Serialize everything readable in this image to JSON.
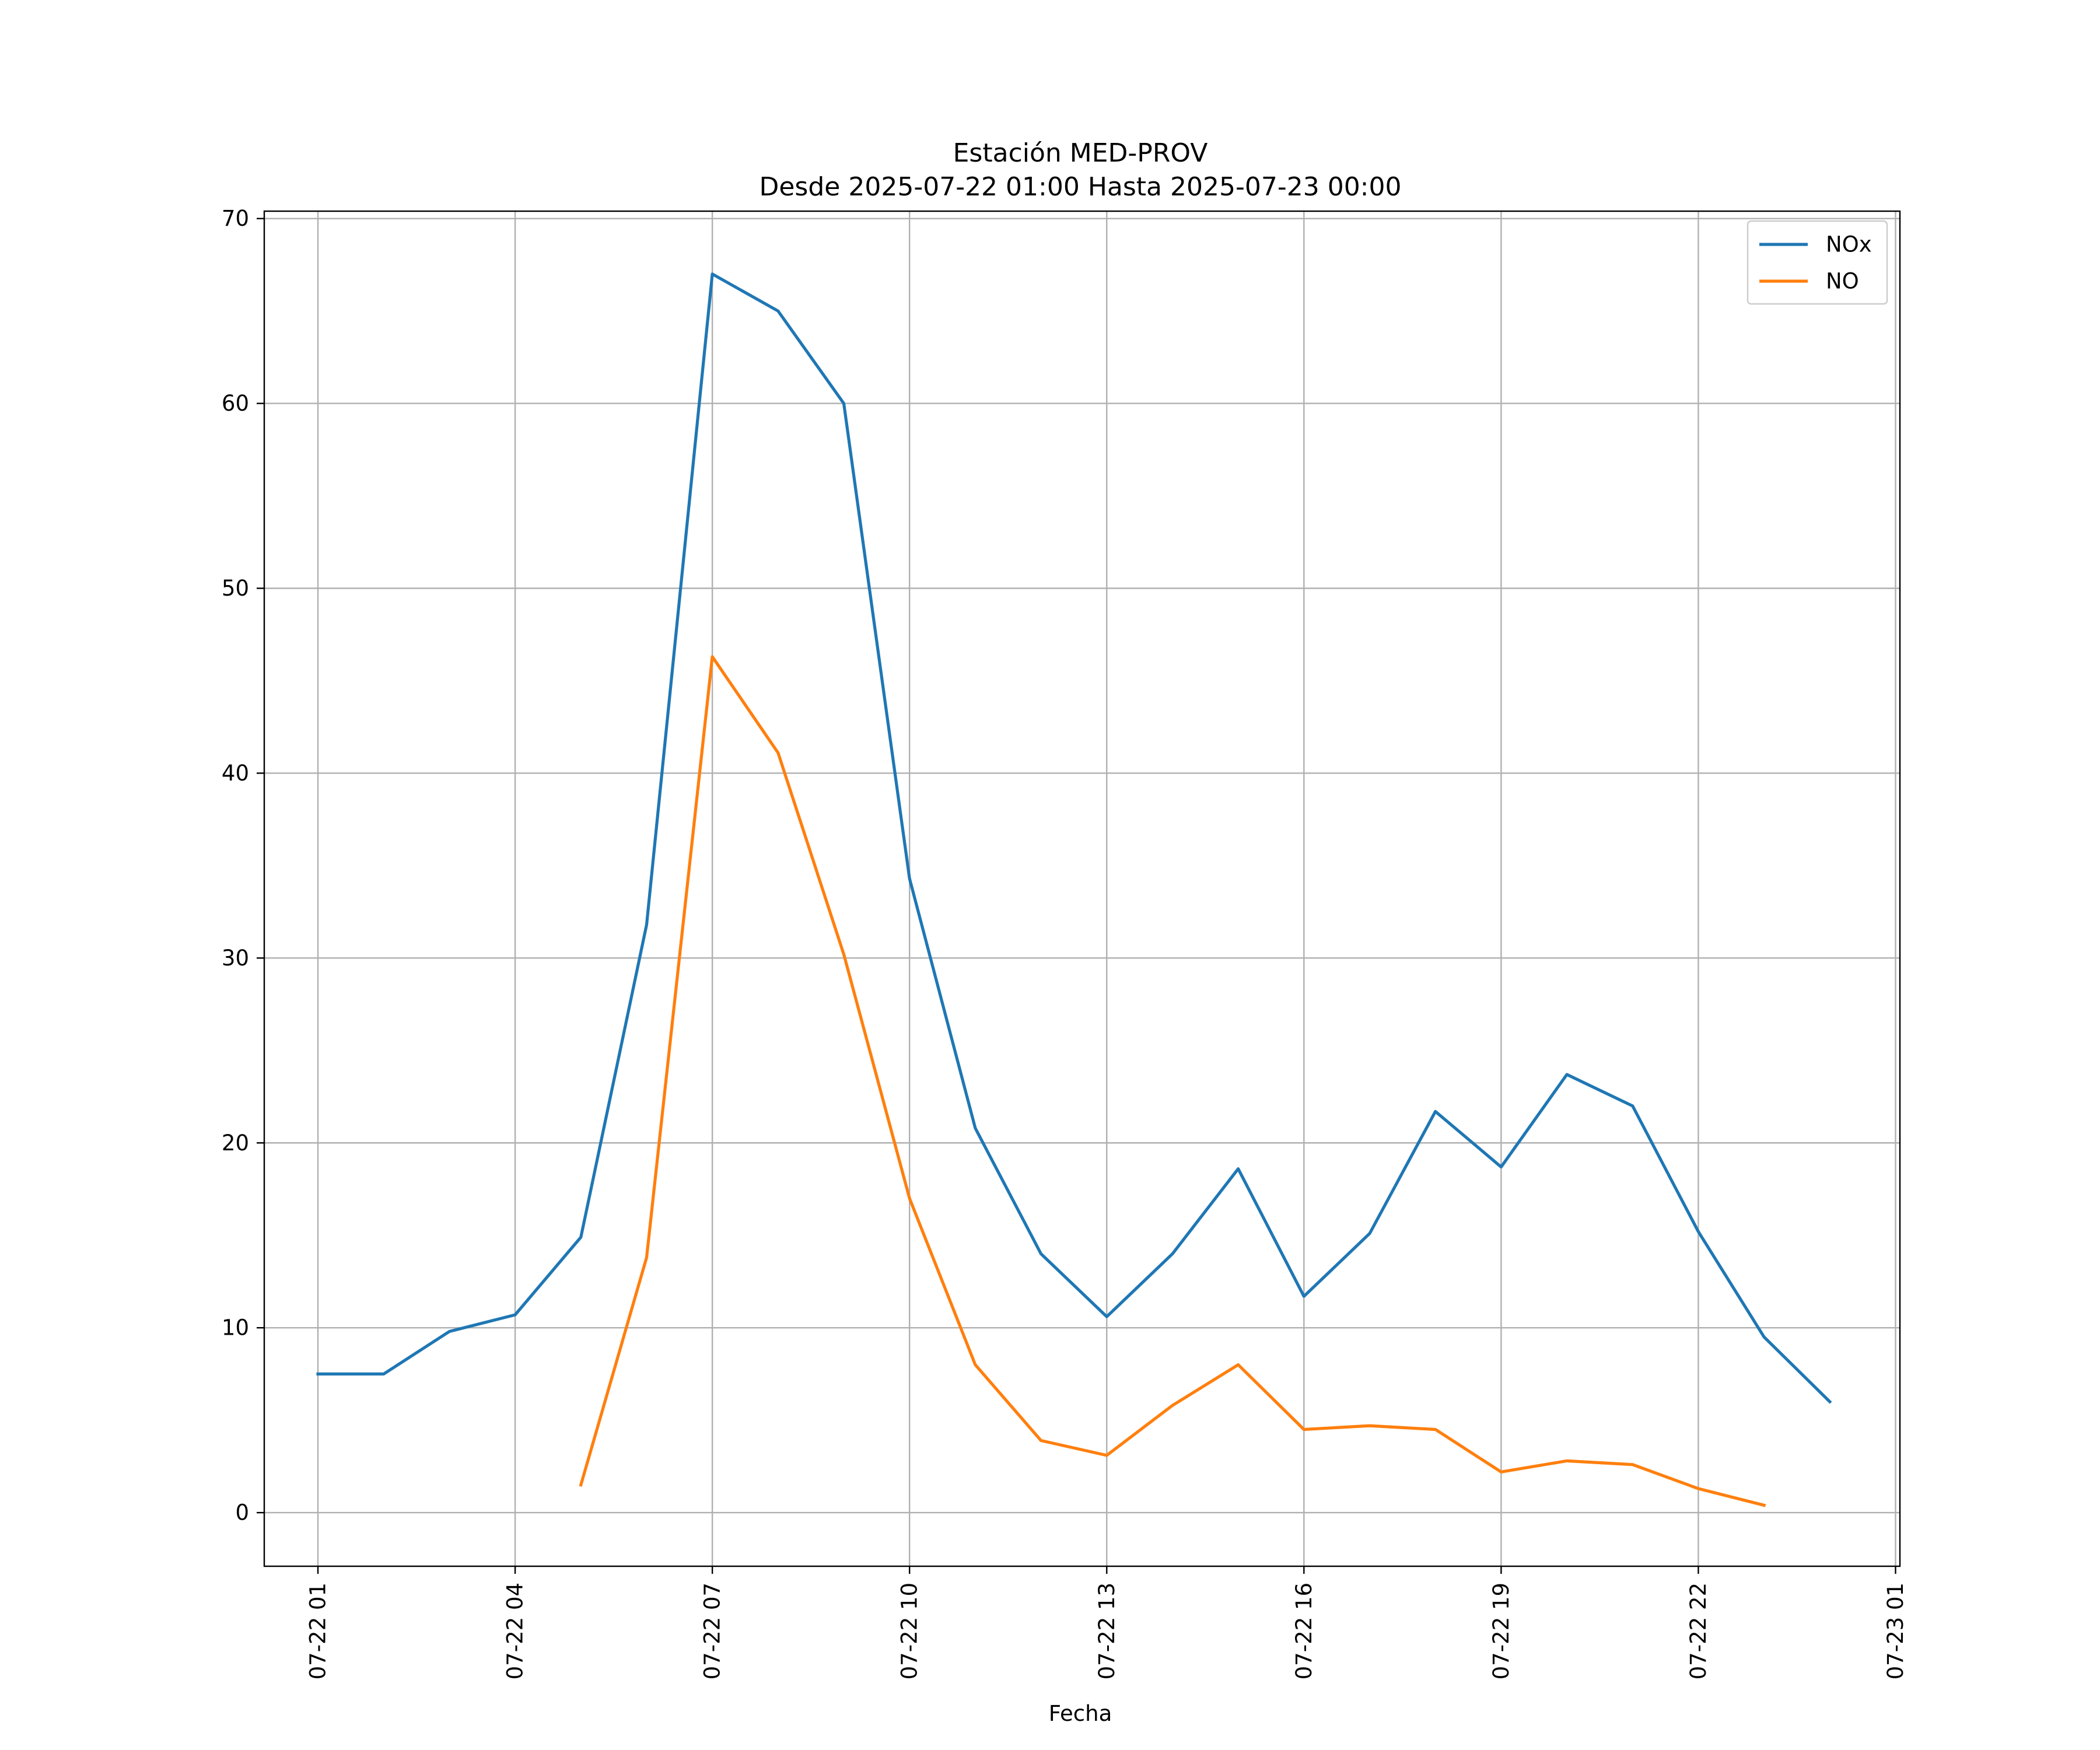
{
  "chart_data": {
    "type": "line",
    "title": "Estación MED-PROV",
    "subtitle": "Desde 2025-07-22 01:00 Hasta 2025-07-23 00:00",
    "xlabel": "Fecha",
    "ylabel": "",
    "x": [
      "2025-07-22 01:00",
      "2025-07-22 02:00",
      "2025-07-22 03:00",
      "2025-07-22 04:00",
      "2025-07-22 05:00",
      "2025-07-22 06:00",
      "2025-07-22 07:00",
      "2025-07-22 08:00",
      "2025-07-22 09:00",
      "2025-07-22 10:00",
      "2025-07-22 11:00",
      "2025-07-22 12:00",
      "2025-07-22 13:00",
      "2025-07-22 14:00",
      "2025-07-22 15:00",
      "2025-07-22 16:00",
      "2025-07-22 17:00",
      "2025-07-22 18:00",
      "2025-07-22 19:00",
      "2025-07-22 20:00",
      "2025-07-22 21:00",
      "2025-07-22 22:00",
      "2025-07-22 23:00",
      "2025-07-23 00:00"
    ],
    "x_ticks": [
      "2025-07-22 01:00",
      "2025-07-22 04:00",
      "2025-07-22 07:00",
      "2025-07-22 10:00",
      "2025-07-22 13:00",
      "2025-07-22 16:00",
      "2025-07-22 19:00",
      "2025-07-22 22:00",
      "2025-07-23 01:00"
    ],
    "x_tick_labels": [
      "07-22 01",
      "07-22 04",
      "07-22 07",
      "07-22 10",
      "07-22 13",
      "07-22 16",
      "07-22 19",
      "07-22 22",
      "07-23 01"
    ],
    "xlim": [
      "2025-07-22 00:11",
      "2025-07-23 01:04"
    ],
    "y_ticks": [
      0,
      10,
      20,
      30,
      40,
      50,
      60,
      70
    ],
    "ylim": [
      -2.9,
      70.4
    ],
    "grid": true,
    "legend_position": "top-right",
    "series": [
      {
        "name": "NOx",
        "color": "#1f77b4",
        "values": [
          7.5,
          7.5,
          9.8,
          10.7,
          14.9,
          31.8,
          67.0,
          65.0,
          60.0,
          34.3,
          20.8,
          14.0,
          10.6,
          14.0,
          18.6,
          11.7,
          15.1,
          21.7,
          18.7,
          23.7,
          22.0,
          15.2,
          9.5,
          6.0
        ]
      },
      {
        "name": "NO",
        "color": "#ff7f0e",
        "values": [
          null,
          null,
          null,
          null,
          1.5,
          13.8,
          46.3,
          41.1,
          30.2,
          17.0,
          8.0,
          3.9,
          3.1,
          5.8,
          8.0,
          4.5,
          4.7,
          4.5,
          2.2,
          2.8,
          2.6,
          1.3,
          0.4,
          null
        ]
      }
    ]
  }
}
